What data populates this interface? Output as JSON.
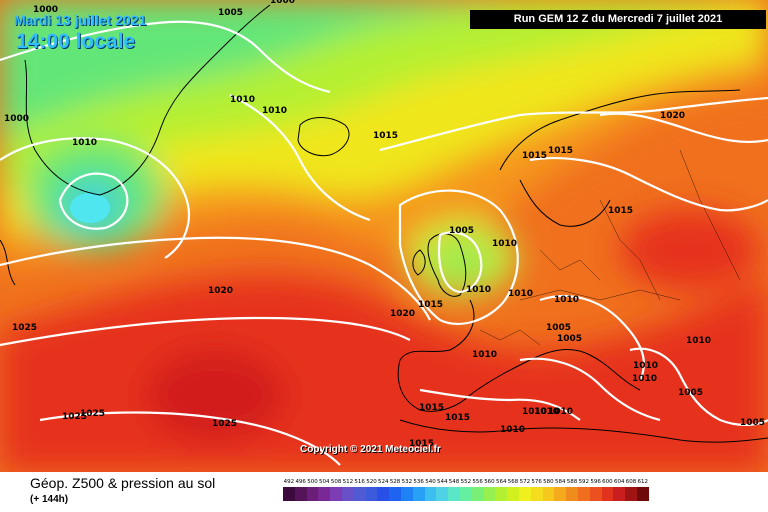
{
  "header": {
    "date": "Mardi 13 juillet 2021",
    "time": "14:00 locale",
    "run": "Run GEM 12 Z du Mercredi 7 juillet 2021"
  },
  "copyright": "Copyright © 2021 Meteociel.fr",
  "legend": {
    "title": "Géop. Z500 & pression au sol",
    "lead_time": "(+ 144h)",
    "values": [
      "492",
      "496",
      "500",
      "504",
      "508",
      "512",
      "516",
      "520",
      "524",
      "528",
      "532",
      "536",
      "540",
      "544",
      "548",
      "552",
      "556",
      "560",
      "564",
      "568",
      "572",
      "576",
      "580",
      "584",
      "588",
      "592",
      "596",
      "600",
      "604",
      "608",
      "612"
    ],
    "colors": [
      "#3d0a3d",
      "#55145a",
      "#6a1e78",
      "#7a2896",
      "#7c3cb4",
      "#6a50c8",
      "#505ad2",
      "#3c5adc",
      "#2850e6",
      "#1e64f0",
      "#1e82f5",
      "#28a0f5",
      "#3cbef0",
      "#50d2e6",
      "#5ae6c8",
      "#64f0a0",
      "#78f078",
      "#96f050",
      "#b4f032",
      "#d2f01e",
      "#f0f01e",
      "#f5dc1e",
      "#f5c81e",
      "#f5aa1e",
      "#f08c1e",
      "#f06e1e",
      "#eb501e",
      "#e1321e",
      "#c81e1e",
      "#a01414",
      "#6e0a0a"
    ]
  },
  "isobar_labels": [
    {
      "text": "1005"
    },
    {
      "text": "1000"
    },
    {
      "text": "1000"
    },
    {
      "text": "1000"
    },
    {
      "text": "1010"
    },
    {
      "text": "1010"
    },
    {
      "text": "1010"
    },
    {
      "text": "1015"
    },
    {
      "text": "1020"
    },
    {
      "text": "1015"
    },
    {
      "text": "1015"
    },
    {
      "text": "1015"
    },
    {
      "text": "1005"
    },
    {
      "text": "1010"
    },
    {
      "text": "1010"
    },
    {
      "text": "1010"
    },
    {
      "text": "1010"
    },
    {
      "text": "1015"
    },
    {
      "text": "1020"
    },
    {
      "text": "1010"
    },
    {
      "text": "1005"
    },
    {
      "text": "1005"
    },
    {
      "text": "1010"
    },
    {
      "text": "1010"
    },
    {
      "text": "1010"
    },
    {
      "text": "1005"
    },
    {
      "text": "1005"
    },
    {
      "text": "1020"
    },
    {
      "text": "1025"
    },
    {
      "text": "1025"
    },
    {
      "text": "1025"
    },
    {
      "text": "1025"
    },
    {
      "text": "1015"
    },
    {
      "text": "1015"
    },
    {
      "text": "1010"
    },
    {
      "text": "1010"
    },
    {
      "text": "1010"
    },
    {
      "text": "1010"
    },
    {
      "text": "1015"
    }
  ]
}
